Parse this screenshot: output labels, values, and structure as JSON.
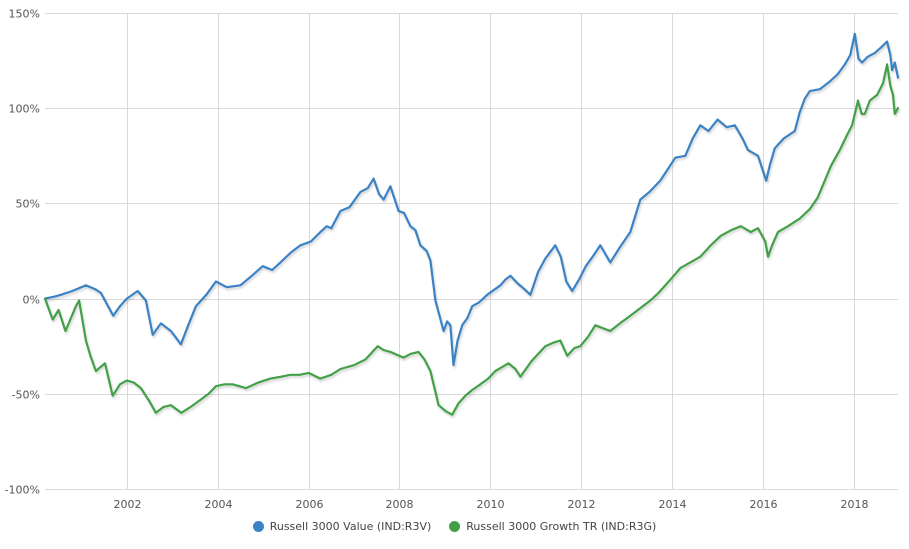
{
  "chart_data": {
    "type": "line",
    "title": "",
    "xlabel": "",
    "ylabel": "",
    "xlim": [
      2000.2,
      2018.97
    ],
    "ylim": [
      -100,
      150
    ],
    "grid": true,
    "legend_position": "bottom-center",
    "x_ticks": [
      2002,
      2004,
      2006,
      2008,
      2010,
      2012,
      2014,
      2016,
      2018
    ],
    "x_tick_labels": [
      "2002",
      "2004",
      "2006",
      "2008",
      "2010",
      "2012",
      "2014",
      "2016",
      "2018"
    ],
    "y_ticks": [
      150,
      100,
      50,
      0,
      -50,
      -100
    ],
    "y_tick_labels": [
      "150%",
      "100%",
      "50%",
      "0%",
      "-50%",
      "-100%"
    ],
    "series": [
      {
        "name": "Russell 3000 Value (IND:R3V)",
        "color": "#3b82c4",
        "x": [
          2000.2,
          2000.4,
          2000.55,
          2000.8,
          2001.1,
          2001.3,
          2001.43,
          2001.7,
          2001.85,
          2002.0,
          2002.24,
          2002.42,
          2002.57,
          2002.75,
          2002.97,
          2003.19,
          2003.35,
          2003.52,
          2003.75,
          2003.96,
          2004.2,
          2004.5,
          2004.75,
          2004.99,
          2005.2,
          2005.38,
          2005.6,
          2005.82,
          2006.05,
          2006.26,
          2006.4,
          2006.5,
          2006.7,
          2006.9,
          2007.14,
          2007.3,
          2007.43,
          2007.55,
          2007.65,
          2007.8,
          2007.98,
          2008.1,
          2008.24,
          2008.35,
          2008.46,
          2008.6,
          2008.68,
          2008.79,
          2008.97,
          2009.05,
          2009.12,
          2009.19,
          2009.28,
          2009.38,
          2009.5,
          2009.6,
          2009.75,
          2009.93,
          2010.22,
          2010.33,
          2010.44,
          2010.6,
          2010.75,
          2010.88,
          2011.05,
          2011.21,
          2011.43,
          2011.55,
          2011.67,
          2011.8,
          2011.95,
          2012.1,
          2012.25,
          2012.42,
          2012.64,
          2012.85,
          2013.08,
          2013.3,
          2013.5,
          2013.74,
          2014.07,
          2014.29,
          2014.45,
          2014.62,
          2014.8,
          2015.0,
          2015.2,
          2015.38,
          2015.55,
          2015.67,
          2015.89,
          2016.07,
          2016.15,
          2016.26,
          2016.45,
          2016.7,
          2016.81,
          2016.92,
          2017.03,
          2017.25,
          2017.47,
          2017.65,
          2017.8,
          2017.92,
          2018.02,
          2018.1,
          2018.18,
          2018.3,
          2018.46,
          2018.6,
          2018.73,
          2018.8,
          2018.84,
          2018.9,
          2018.97
        ],
        "y": [
          0,
          1,
          2,
          4,
          7,
          5,
          3,
          -9,
          -4,
          0,
          4,
          -1,
          -19,
          -13,
          -17,
          -24,
          -14,
          -4,
          2,
          9,
          6,
          7,
          12,
          17,
          15,
          19,
          24,
          28,
          30,
          35,
          38,
          37,
          46,
          48,
          56,
          58,
          63,
          55,
          52,
          59,
          46,
          45,
          38,
          36,
          28,
          25,
          20,
          -1,
          -17,
          -12,
          -14,
          -35,
          -22,
          -14,
          -10,
          -4,
          -2,
          2,
          7,
          10,
          12,
          8,
          5,
          2,
          14,
          21,
          28,
          22,
          9,
          4,
          10,
          17,
          22,
          28,
          19,
          27,
          35,
          52,
          56,
          62,
          74,
          75,
          84,
          91,
          88,
          94,
          90,
          91,
          84,
          78,
          75,
          62,
          70,
          79,
          84,
          88,
          98,
          105,
          109,
          110,
          114,
          118,
          123,
          128,
          139,
          126,
          124,
          127,
          129,
          132,
          135,
          128,
          120,
          124,
          116
        ]
      },
      {
        "name": "Russell 3000 Growth TR (IND:R3G)",
        "color": "#43a047",
        "x": [
          2000.2,
          2000.37,
          2000.5,
          2000.65,
          2000.88,
          2000.95,
          2001.1,
          2001.2,
          2001.32,
          2001.42,
          2001.52,
          2001.69,
          2001.85,
          2002.0,
          2002.15,
          2002.31,
          2002.5,
          2002.64,
          2002.8,
          2002.97,
          2003.2,
          2003.4,
          2003.63,
          2003.8,
          2003.96,
          2004.15,
          2004.33,
          2004.62,
          2004.9,
          2005.16,
          2005.4,
          2005.6,
          2005.8,
          2006.0,
          2006.26,
          2006.5,
          2006.7,
          2007.0,
          2007.25,
          2007.52,
          2007.65,
          2007.8,
          2008.09,
          2008.25,
          2008.42,
          2008.55,
          2008.68,
          2008.86,
          2009.01,
          2009.16,
          2009.3,
          2009.45,
          2009.6,
          2009.78,
          2009.95,
          2010.11,
          2010.4,
          2010.55,
          2010.66,
          2010.9,
          2011.21,
          2011.4,
          2011.54,
          2011.69,
          2011.85,
          2011.98,
          2012.15,
          2012.31,
          2012.64,
          2012.85,
          2013.08,
          2013.3,
          2013.52,
          2013.7,
          2013.85,
          2014.0,
          2014.18,
          2014.4,
          2014.62,
          2014.85,
          2015.07,
          2015.3,
          2015.51,
          2015.73,
          2015.89,
          2016.05,
          2016.11,
          2016.2,
          2016.33,
          2016.55,
          2016.81,
          2017.03,
          2017.2,
          2017.36,
          2017.5,
          2017.69,
          2017.85,
          2017.96,
          2018.09,
          2018.17,
          2018.24,
          2018.35,
          2018.51,
          2018.64,
          2018.73,
          2018.8,
          2018.86,
          2018.9,
          2018.97
        ],
        "y": [
          0,
          -11,
          -6,
          -17,
          -4,
          -1,
          -22,
          -30,
          -38,
          -36,
          -34,
          -51,
          -45,
          -43,
          -44,
          -47,
          -54,
          -60,
          -57,
          -56,
          -60,
          -57,
          -53,
          -50,
          -46,
          -45,
          -45,
          -47,
          -44,
          -42,
          -41,
          -40,
          -40,
          -39,
          -42,
          -40,
          -37,
          -35,
          -32,
          -25,
          -27,
          -28,
          -31,
          -29,
          -28,
          -32,
          -38,
          -56,
          -59,
          -61,
          -55,
          -51,
          -48,
          -45,
          -42,
          -38,
          -34,
          -37,
          -41,
          -33,
          -25,
          -23,
          -22,
          -30,
          -26,
          -25,
          -20,
          -14,
          -17,
          -13,
          -9,
          -5,
          -1,
          3,
          7,
          11,
          16,
          19,
          22,
          28,
          33,
          36,
          38,
          35,
          37,
          30,
          22,
          28,
          35,
          38,
          42,
          47,
          53,
          62,
          70,
          78,
          86,
          91,
          104,
          97,
          97,
          104,
          107,
          113,
          123,
          112,
          107,
          97,
          100
        ]
      }
    ]
  },
  "legend": {
    "items": [
      {
        "label": "Russell 3000 Value (IND:R3V)",
        "color": "#3b82c4"
      },
      {
        "label": "Russell 3000 Growth TR (IND:R3G)",
        "color": "#43a047"
      }
    ]
  }
}
